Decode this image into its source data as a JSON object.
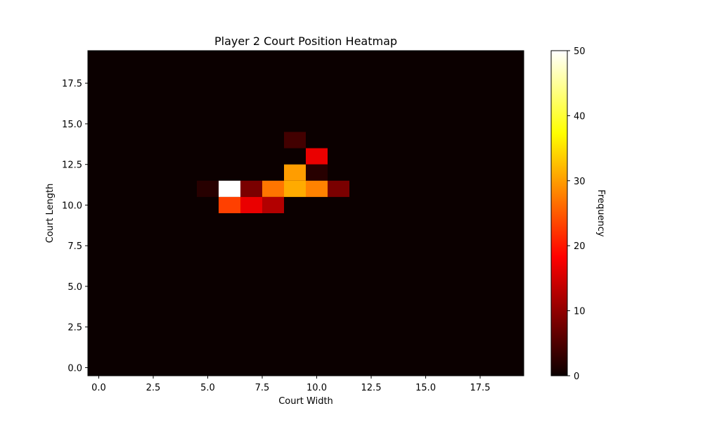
{
  "chart_data": {
    "type": "heatmap",
    "title": "Player 2 Court Position Heatmap",
    "xlabel": "Court Width",
    "ylabel": "Court Length",
    "x_ticks": [
      "0.0",
      "2.5",
      "5.0",
      "7.5",
      "10.0",
      "12.5",
      "15.0",
      "17.5"
    ],
    "y_ticks": [
      "0.0",
      "2.5",
      "5.0",
      "7.5",
      "10.0",
      "12.5",
      "15.0",
      "17.5"
    ],
    "tick_values": [
      0,
      2.5,
      5,
      7.5,
      10,
      12.5,
      15,
      17.5
    ],
    "xlim": [
      -0.5,
      19.5
    ],
    "ylim": [
      -0.5,
      19.5
    ],
    "grid_size": [
      20,
      20
    ],
    "colormap": "hot",
    "colorbar": {
      "label": "Frequency",
      "range": [
        0,
        50
      ],
      "ticks": [
        "0",
        "10",
        "20",
        "30",
        "40",
        "50"
      ],
      "tick_values": [
        0,
        10,
        20,
        30,
        40,
        50
      ]
    },
    "background_value": 0,
    "cells": [
      {
        "x": 9,
        "y": 14,
        "value": 4
      },
      {
        "x": 10,
        "y": 13,
        "value": 16
      },
      {
        "x": 9,
        "y": 12,
        "value": 30
      },
      {
        "x": 10,
        "y": 12,
        "value": 2
      },
      {
        "x": 5,
        "y": 11,
        "value": 2
      },
      {
        "x": 6,
        "y": 11,
        "value": 50
      },
      {
        "x": 7,
        "y": 11,
        "value": 8
      },
      {
        "x": 8,
        "y": 11,
        "value": 27
      },
      {
        "x": 9,
        "y": 11,
        "value": 31
      },
      {
        "x": 10,
        "y": 11,
        "value": 28
      },
      {
        "x": 11,
        "y": 11,
        "value": 8
      },
      {
        "x": 6,
        "y": 10,
        "value": 23
      },
      {
        "x": 7,
        "y": 10,
        "value": 16
      },
      {
        "x": 8,
        "y": 10,
        "value": 12
      }
    ]
  }
}
